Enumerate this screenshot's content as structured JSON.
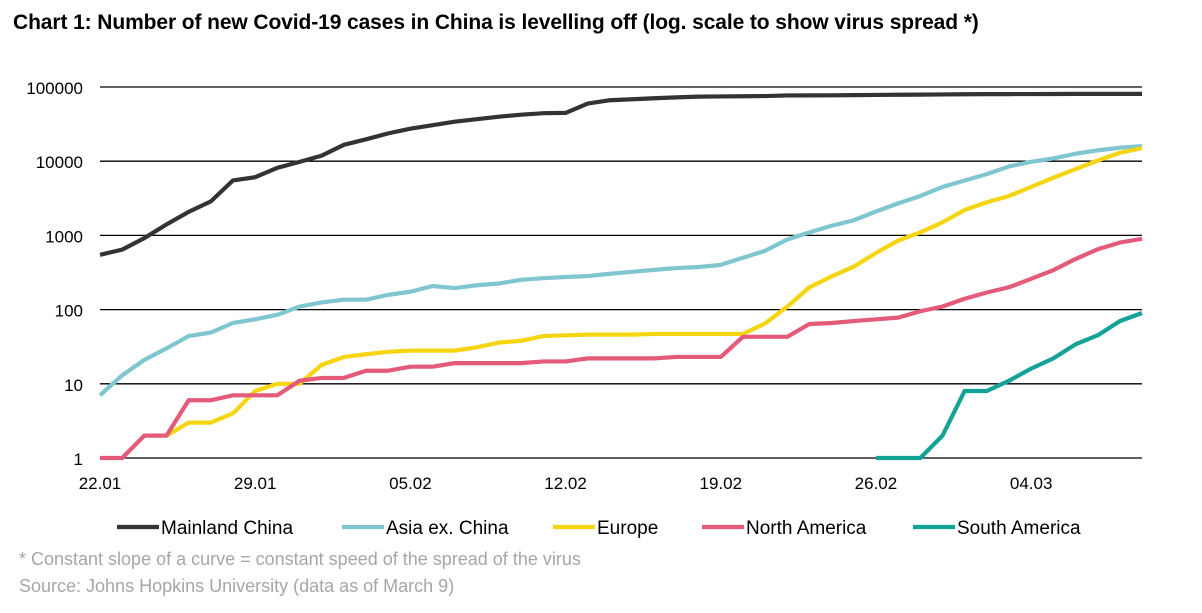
{
  "title": "Chart 1: Number of new Covid-19 cases in China is levelling off (log. scale to show virus spread *)",
  "footnote": "* Constant slope of a curve = constant speed of the spread of the virus",
  "source": "Source: Johns Hopkins University (data as of March 9)",
  "chart_data": {
    "type": "line",
    "title": "Chart 1: Number of new Covid-19 cases in China is levelling off (log. scale to show virus spread *)",
    "y_scale": "log",
    "ylim": [
      1,
      100000
    ],
    "y_ticks": [
      "1",
      "10",
      "100",
      "1000",
      "10000",
      "100000"
    ],
    "y_tick_values": [
      1,
      10,
      100,
      1000,
      10000,
      100000
    ],
    "x_tick_labels": [
      "22.01",
      "29.01",
      "05.02",
      "12.02",
      "19.02",
      "26.02",
      "04.03"
    ],
    "x_start": "22.01",
    "x_end": "09.03",
    "x": [
      "22.01",
      "23.01",
      "24.01",
      "25.01",
      "26.01",
      "27.01",
      "28.01",
      "29.01",
      "30.01",
      "31.01",
      "01.02",
      "02.02",
      "03.02",
      "04.02",
      "05.02",
      "06.02",
      "07.02",
      "08.02",
      "09.02",
      "10.02",
      "11.02",
      "12.02",
      "13.02",
      "14.02",
      "15.02",
      "16.02",
      "17.02",
      "18.02",
      "19.02",
      "20.02",
      "21.02",
      "22.02",
      "23.02",
      "24.02",
      "25.02",
      "26.02",
      "27.02",
      "28.02",
      "29.02",
      "01.03",
      "02.03",
      "03.03",
      "04.03",
      "05.03",
      "06.03",
      "07.03",
      "08.03",
      "09.03"
    ],
    "grid": true,
    "legend_position": "bottom",
    "series": [
      {
        "name": "Mainland China",
        "color": "#333333",
        "values": [
          548,
          643,
          920,
          1406,
          2075,
          2877,
          5509,
          6087,
          8141,
          9802,
          11891,
          16630,
          19716,
          23707,
          27440,
          30587,
          34110,
          36814,
          39829,
          42354,
          44386,
          44759,
          59895,
          66358,
          68413,
          70513,
          72434,
          74211,
          74619,
          75077,
          75550,
          77001,
          77022,
          77241,
          77754,
          78166,
          78600,
          78928,
          79356,
          79932,
          80136,
          80261,
          80386,
          80537,
          80690,
          80770,
          80823,
          80860
        ]
      },
      {
        "name": "Asia ex. China",
        "color": "#7fc6d1",
        "values": [
          7,
          13,
          21,
          30,
          44,
          49,
          66,
          74,
          85,
          110,
          125,
          136,
          136,
          158,
          174,
          208,
          195,
          213,
          225,
          252,
          265,
          275,
          283,
          304,
          323,
          343,
          363,
          375,
          400,
          500,
          620,
          880,
          1100,
          1350,
          1600,
          2100,
          2700,
          3400,
          4500,
          5500,
          6700,
          8500,
          9800,
          10900,
          12600,
          14000,
          15200,
          16000
        ]
      },
      {
        "name": "Europe",
        "color": "#f5d410",
        "values": [
          null,
          null,
          null,
          2,
          3,
          3,
          4,
          8,
          10,
          10,
          18,
          23,
          25,
          27,
          28,
          28,
          28,
          31,
          36,
          38,
          44,
          45,
          46,
          46,
          46,
          47,
          47,
          47,
          47,
          47,
          65,
          110,
          200,
          280,
          380,
          580,
          850,
          1100,
          1500,
          2200,
          2800,
          3400,
          4500,
          6000,
          7800,
          10200,
          13000,
          15000
        ]
      },
      {
        "name": "North America",
        "color": "#e35b79",
        "values": [
          1,
          1,
          2,
          2,
          6,
          6,
          7,
          7,
          7,
          11,
          12,
          12,
          15,
          15,
          17,
          17,
          19,
          19,
          19,
          19,
          20,
          20,
          22,
          22,
          22,
          22,
          23,
          23,
          23,
          43,
          43,
          43,
          64,
          66,
          70,
          74,
          78,
          95,
          110,
          140,
          170,
          200,
          260,
          340,
          480,
          650,
          800,
          900
        ]
      },
      {
        "name": "South America",
        "color": "#13a296",
        "values": [
          null,
          null,
          null,
          null,
          null,
          null,
          null,
          null,
          null,
          null,
          null,
          null,
          null,
          null,
          null,
          null,
          null,
          null,
          null,
          null,
          null,
          null,
          null,
          null,
          null,
          null,
          null,
          null,
          null,
          null,
          null,
          null,
          null,
          null,
          null,
          1,
          1,
          1,
          2,
          8,
          8,
          11,
          16,
          22,
          34,
          45,
          70,
          90
        ]
      }
    ]
  }
}
